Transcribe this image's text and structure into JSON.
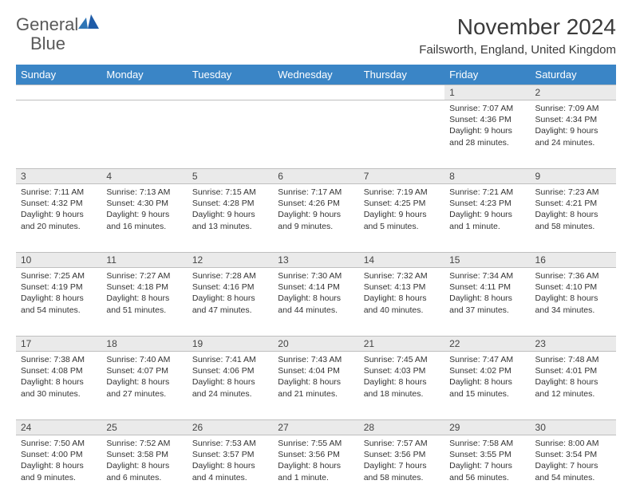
{
  "logo": {
    "text1": "General",
    "text2": "Blue",
    "color_gray": "#595959",
    "color_blue": "#2e75b6"
  },
  "header": {
    "month_title": "November 2024",
    "location": "Failsworth, England, United Kingdom"
  },
  "style": {
    "header_bg": "#3a85c6",
    "header_fg": "#ffffff",
    "daynum_bg": "#eaeaea",
    "border_color": "#bfbfbf",
    "body_bg": "#ffffff",
    "title_fontsize": 28,
    "location_fontsize": 15,
    "dayheader_fontsize": 13,
    "daynum_fontsize": 12,
    "cell_fontsize": 10.5
  },
  "day_headers": [
    "Sunday",
    "Monday",
    "Tuesday",
    "Wednesday",
    "Thursday",
    "Friday",
    "Saturday"
  ],
  "weeks": [
    [
      null,
      null,
      null,
      null,
      null,
      {
        "n": "1",
        "sunrise": "7:07 AM",
        "sunset": "4:36 PM",
        "daylight": "9 hours and 28 minutes."
      },
      {
        "n": "2",
        "sunrise": "7:09 AM",
        "sunset": "4:34 PM",
        "daylight": "9 hours and 24 minutes."
      }
    ],
    [
      {
        "n": "3",
        "sunrise": "7:11 AM",
        "sunset": "4:32 PM",
        "daylight": "9 hours and 20 minutes."
      },
      {
        "n": "4",
        "sunrise": "7:13 AM",
        "sunset": "4:30 PM",
        "daylight": "9 hours and 16 minutes."
      },
      {
        "n": "5",
        "sunrise": "7:15 AM",
        "sunset": "4:28 PM",
        "daylight": "9 hours and 13 minutes."
      },
      {
        "n": "6",
        "sunrise": "7:17 AM",
        "sunset": "4:26 PM",
        "daylight": "9 hours and 9 minutes."
      },
      {
        "n": "7",
        "sunrise": "7:19 AM",
        "sunset": "4:25 PM",
        "daylight": "9 hours and 5 minutes."
      },
      {
        "n": "8",
        "sunrise": "7:21 AM",
        "sunset": "4:23 PM",
        "daylight": "9 hours and 1 minute."
      },
      {
        "n": "9",
        "sunrise": "7:23 AM",
        "sunset": "4:21 PM",
        "daylight": "8 hours and 58 minutes."
      }
    ],
    [
      {
        "n": "10",
        "sunrise": "7:25 AM",
        "sunset": "4:19 PM",
        "daylight": "8 hours and 54 minutes."
      },
      {
        "n": "11",
        "sunrise": "7:27 AM",
        "sunset": "4:18 PM",
        "daylight": "8 hours and 51 minutes."
      },
      {
        "n": "12",
        "sunrise": "7:28 AM",
        "sunset": "4:16 PM",
        "daylight": "8 hours and 47 minutes."
      },
      {
        "n": "13",
        "sunrise": "7:30 AM",
        "sunset": "4:14 PM",
        "daylight": "8 hours and 44 minutes."
      },
      {
        "n": "14",
        "sunrise": "7:32 AM",
        "sunset": "4:13 PM",
        "daylight": "8 hours and 40 minutes."
      },
      {
        "n": "15",
        "sunrise": "7:34 AM",
        "sunset": "4:11 PM",
        "daylight": "8 hours and 37 minutes."
      },
      {
        "n": "16",
        "sunrise": "7:36 AM",
        "sunset": "4:10 PM",
        "daylight": "8 hours and 34 minutes."
      }
    ],
    [
      {
        "n": "17",
        "sunrise": "7:38 AM",
        "sunset": "4:08 PM",
        "daylight": "8 hours and 30 minutes."
      },
      {
        "n": "18",
        "sunrise": "7:40 AM",
        "sunset": "4:07 PM",
        "daylight": "8 hours and 27 minutes."
      },
      {
        "n": "19",
        "sunrise": "7:41 AM",
        "sunset": "4:06 PM",
        "daylight": "8 hours and 24 minutes."
      },
      {
        "n": "20",
        "sunrise": "7:43 AM",
        "sunset": "4:04 PM",
        "daylight": "8 hours and 21 minutes."
      },
      {
        "n": "21",
        "sunrise": "7:45 AM",
        "sunset": "4:03 PM",
        "daylight": "8 hours and 18 minutes."
      },
      {
        "n": "22",
        "sunrise": "7:47 AM",
        "sunset": "4:02 PM",
        "daylight": "8 hours and 15 minutes."
      },
      {
        "n": "23",
        "sunrise": "7:48 AM",
        "sunset": "4:01 PM",
        "daylight": "8 hours and 12 minutes."
      }
    ],
    [
      {
        "n": "24",
        "sunrise": "7:50 AM",
        "sunset": "4:00 PM",
        "daylight": "8 hours and 9 minutes."
      },
      {
        "n": "25",
        "sunrise": "7:52 AM",
        "sunset": "3:58 PM",
        "daylight": "8 hours and 6 minutes."
      },
      {
        "n": "26",
        "sunrise": "7:53 AM",
        "sunset": "3:57 PM",
        "daylight": "8 hours and 4 minutes."
      },
      {
        "n": "27",
        "sunrise": "7:55 AM",
        "sunset": "3:56 PM",
        "daylight": "8 hours and 1 minute."
      },
      {
        "n": "28",
        "sunrise": "7:57 AM",
        "sunset": "3:56 PM",
        "daylight": "7 hours and 58 minutes."
      },
      {
        "n": "29",
        "sunrise": "7:58 AM",
        "sunset": "3:55 PM",
        "daylight": "7 hours and 56 minutes."
      },
      {
        "n": "30",
        "sunrise": "8:00 AM",
        "sunset": "3:54 PM",
        "daylight": "7 hours and 54 minutes."
      }
    ]
  ],
  "labels": {
    "sunrise": "Sunrise:",
    "sunset": "Sunset:",
    "daylight": "Daylight:"
  }
}
